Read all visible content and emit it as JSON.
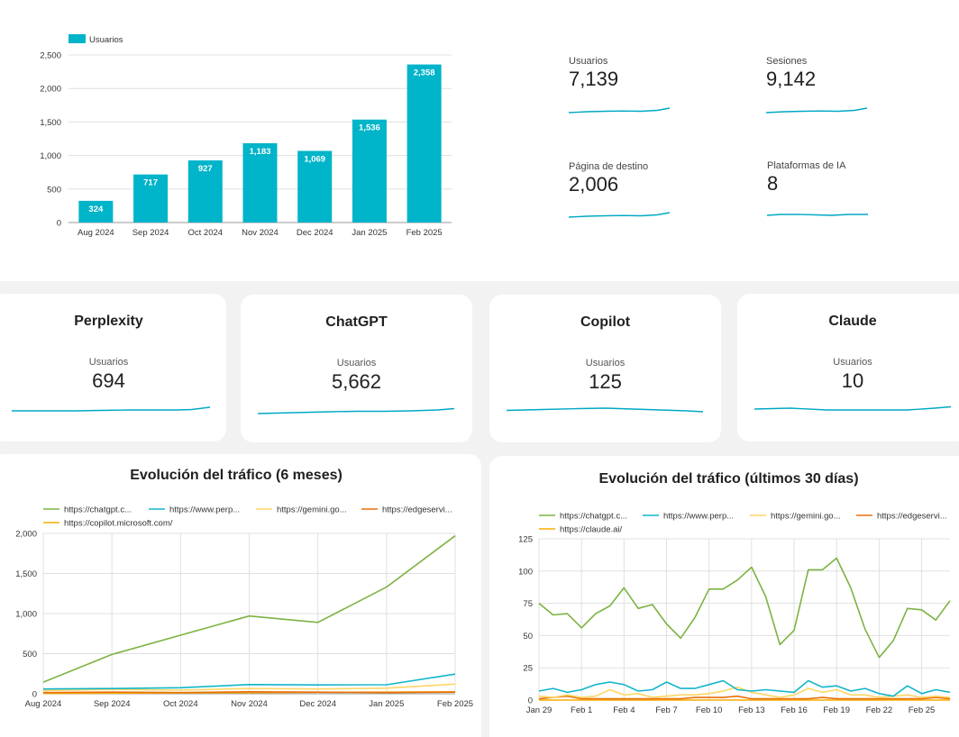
{
  "kpis": [
    {
      "label": "Usuarios",
      "value": "7,139"
    },
    {
      "label": "Sesiones",
      "value": "9,142"
    },
    {
      "label": "Página de destino",
      "value": "2,006"
    },
    {
      "label": "Plataformas de IA",
      "value": "8"
    }
  ],
  "platform_cards": [
    {
      "title": "Perplexity",
      "metric": "Usuarios",
      "value": "694"
    },
    {
      "title": "ChatGPT",
      "metric": "Usuarios",
      "value": "5,662"
    },
    {
      "title": "Copilot",
      "metric": "Usuarios",
      "value": "125"
    },
    {
      "title": "Claude",
      "metric": "Usuarios",
      "value": "10"
    }
  ],
  "colors": {
    "bar": "#00b4c9",
    "spark": "#00a9c5",
    "chatgpt": "#7cb342",
    "perplexity": "#12b5cb",
    "gemini": "#fdd663",
    "edge": "#e8710a",
    "copilot": "#f9ab00",
    "claude": "#f9ab00",
    "grid": "#e0e0e0"
  },
  "chart_data": [
    {
      "type": "bar",
      "legend": [
        "Usuarios"
      ],
      "legend_position": "top-left",
      "categories": [
        "Aug 2024",
        "Sep 2024",
        "Oct 2024",
        "Nov 2024",
        "Dec 2024",
        "Jan 2025",
        "Feb 2025"
      ],
      "values": [
        324,
        717,
        927,
        1183,
        1069,
        1536,
        2358
      ],
      "data_labels": [
        "324",
        "717",
        "927",
        "1,183",
        "1,069",
        "1,536",
        "2,358"
      ],
      "ylim": [
        0,
        2500
      ],
      "yticks": [
        0,
        500,
        1000,
        1500,
        2000,
        2500
      ],
      "ytick_labels": [
        "0",
        "500",
        "1,000",
        "1,500",
        "2,000",
        "2,500"
      ],
      "grid": true
    },
    {
      "type": "line",
      "title": "Evolución del tráfico (6 meses)",
      "legend_position": "top",
      "categories": [
        "Aug 2024",
        "Sep 2024",
        "Oct 2024",
        "Nov 2024",
        "Dec 2024",
        "Jan 2025",
        "Feb 2025"
      ],
      "series": [
        {
          "name": "https://chatgpt.c...",
          "color_key": "chatgpt",
          "values": [
            145,
            490,
            730,
            970,
            890,
            1330,
            1970
          ]
        },
        {
          "name": "https://www.perp...",
          "color_key": "perplexity",
          "values": [
            60,
            65,
            75,
            115,
            110,
            112,
            245
          ]
        },
        {
          "name": "https://gemini.go...",
          "color_key": "gemini",
          "values": [
            40,
            55,
            45,
            65,
            60,
            70,
            120
          ]
        },
        {
          "name": "https://edgeservi...",
          "color_key": "edge",
          "values": [
            15,
            20,
            15,
            25,
            20,
            15,
            20
          ]
        },
        {
          "name": "https://copilot.microsoft.com/",
          "color_key": "copilot",
          "values": [
            5,
            8,
            10,
            15,
            18,
            20,
            25
          ]
        }
      ],
      "ylim": [
        0,
        2000
      ],
      "yticks": [
        0,
        500,
        1000,
        1500,
        2000
      ],
      "ytick_labels": [
        "0",
        "500",
        "1,000",
        "1,500",
        "2,000"
      ],
      "grid": true
    },
    {
      "type": "line",
      "title": "Evolución del tráfico (últimos 30 días)",
      "legend_position": "top",
      "x_tick_labels": [
        "Jan 29",
        "Feb 1",
        "Feb 4",
        "Feb 7",
        "Feb 10",
        "Feb 13",
        "Feb 16",
        "Feb 19",
        "Feb 22",
        "Feb 25"
      ],
      "series": [
        {
          "name": "https://chatgpt.c...",
          "color_key": "chatgpt",
          "values": [
            75,
            66,
            67,
            56,
            67,
            73,
            87,
            71,
            74,
            59,
            48,
            64,
            86,
            86,
            93,
            103,
            80,
            43,
            54,
            101,
            101,
            110,
            87,
            55,
            33,
            46,
            71,
            70,
            62,
            77
          ]
        },
        {
          "name": "https://www.perp...",
          "color_key": "perplexity",
          "values": [
            7,
            9,
            6,
            8,
            12,
            14,
            12,
            7,
            8,
            14,
            9,
            9,
            12,
            15,
            8,
            7,
            8,
            7,
            6,
            15,
            10,
            11,
            7,
            9,
            5,
            3,
            11,
            5,
            8,
            6
          ]
        },
        {
          "name": "https://gemini.go...",
          "color_key": "gemini",
          "values": [
            3,
            2,
            4,
            2,
            3,
            8,
            4,
            5,
            2,
            3,
            4,
            4,
            5,
            7,
            10,
            6,
            4,
            2,
            4,
            9,
            6,
            8,
            4,
            4,
            2,
            3,
            4,
            2,
            3,
            2
          ]
        },
        {
          "name": "https://edgeservi...",
          "color_key": "edge",
          "values": [
            1,
            2,
            3,
            1,
            1,
            1,
            1,
            1,
            1,
            1,
            1,
            2,
            2,
            2,
            3,
            1,
            1,
            1,
            1,
            1,
            2,
            1,
            1,
            1,
            1,
            1,
            1,
            1,
            2,
            1
          ]
        },
        {
          "name": "https://claude.ai/",
          "color_key": "claude",
          "values": [
            0,
            0,
            0,
            0,
            0,
            0,
            0,
            0,
            0,
            0,
            0,
            0,
            0,
            0,
            0,
            0,
            0,
            0,
            0,
            0,
            0,
            0,
            0,
            0,
            0,
            0,
            0,
            0,
            0,
            0
          ]
        }
      ],
      "ylim": [
        0,
        125
      ],
      "yticks": [
        0,
        25,
        50,
        75,
        100,
        125
      ],
      "ytick_labels": [
        "0",
        "25",
        "50",
        "75",
        "100",
        "125"
      ],
      "grid": true
    }
  ]
}
